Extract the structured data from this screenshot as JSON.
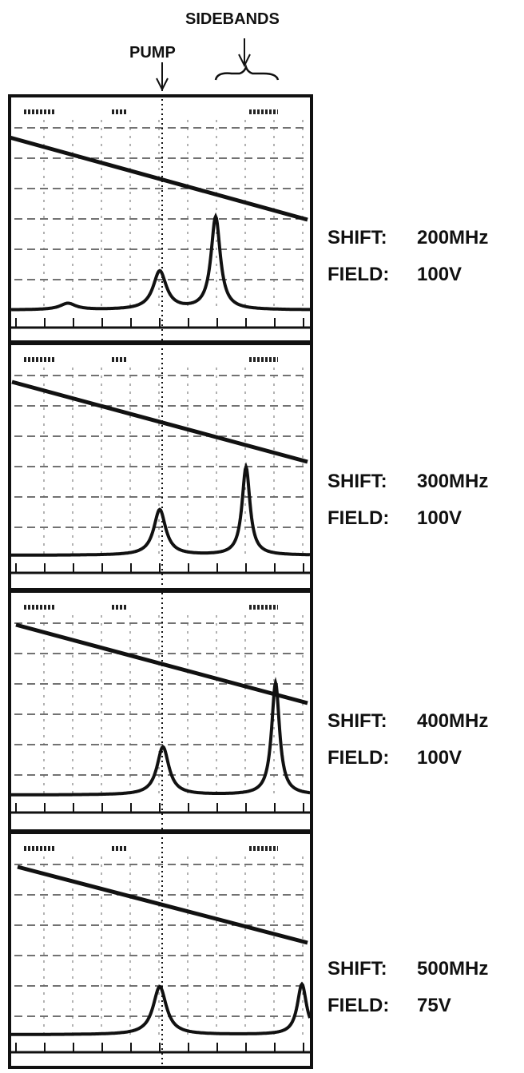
{
  "annotations": {
    "sidebands": "SIDEBANDS",
    "pump": "PUMP"
  },
  "panels": [
    {
      "shift_label": "SHIFT:",
      "shift": "200MHz",
      "field_label": "FIELD:",
      "field": "100V"
    },
    {
      "shift_label": "SHIFT:",
      "shift": "300MHz",
      "field_label": "FIELD:",
      "field": "100V"
    },
    {
      "shift_label": "SHIFT:",
      "shift": "400MHz",
      "field_label": "FIELD:",
      "field": "100V"
    },
    {
      "shift_label": "SHIFT:",
      "shift": "500MHz",
      "field_label": "FIELD:",
      "field": "75V"
    }
  ]
}
